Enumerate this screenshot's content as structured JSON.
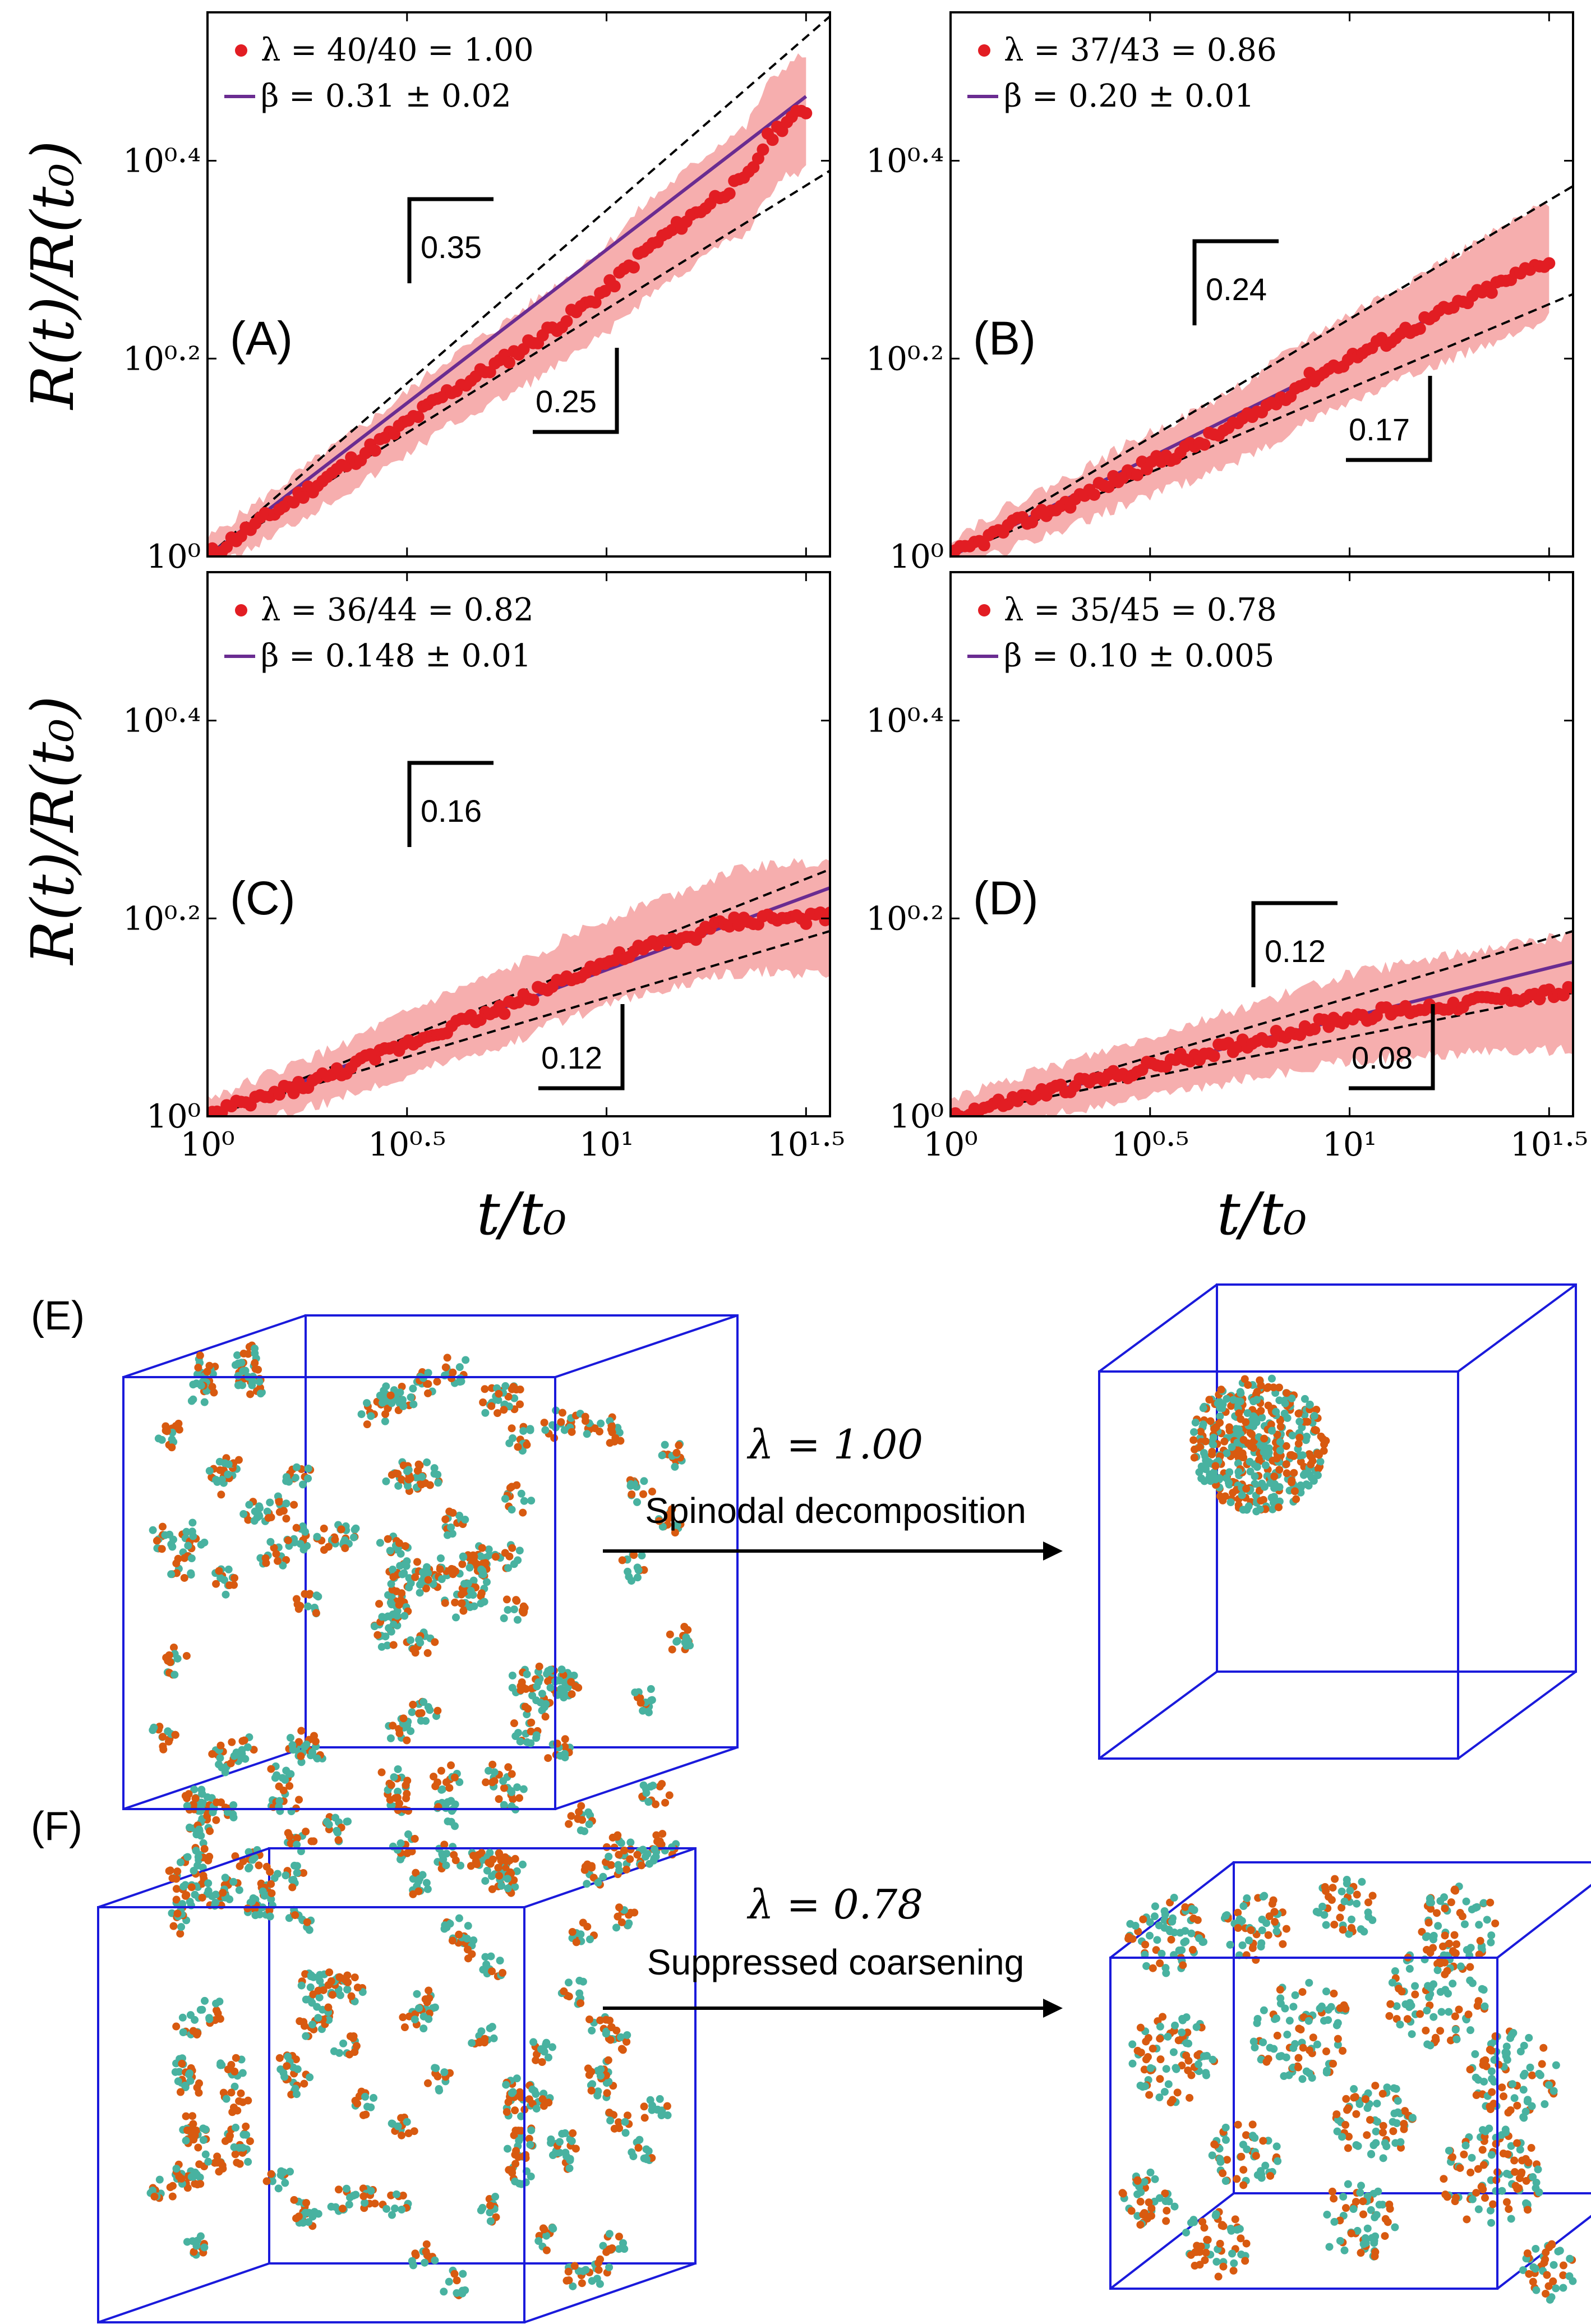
{
  "chart_data": [
    {
      "panel": "(A)",
      "type": "scatter",
      "legend": {
        "points": "λ = 40/40 = 1.00",
        "line": "β = 0.31 ± 0.02"
      },
      "ylabel": "R(t)/R(t₀)",
      "xlabel": "",
      "xlog_range": [
        0,
        1.56
      ],
      "ylog_range": [
        0,
        0.55
      ],
      "xticks": [],
      "yticks": [
        "10⁰",
        "10⁰·²",
        "10⁰·⁴"
      ],
      "fit_beta": 0.31,
      "upper_slope": 0.35,
      "lower_slope": 0.25,
      "x_end": 1.5,
      "slope_labels": {
        "upper": "0.35",
        "lower": "0.25"
      },
      "series": [
        {
          "name": "data",
          "x": [
            0,
            0.15,
            0.3,
            0.45,
            0.6,
            0.75,
            0.9,
            1.0,
            1.1,
            1.2,
            1.3,
            1.35,
            1.4,
            1.45,
            1.5
          ],
          "y": [
            0,
            0.04,
            0.08,
            0.12,
            0.165,
            0.2,
            0.24,
            0.27,
            0.31,
            0.34,
            0.37,
            0.38,
            0.42,
            0.44,
            0.45
          ]
        }
      ]
    },
    {
      "panel": "(B)",
      "type": "scatter",
      "legend": {
        "points": "λ = 37/43 = 0.86",
        "line": "β = 0.20 ± 0.01"
      },
      "ylabel": "",
      "xlabel": "",
      "xlog_range": [
        0,
        1.56
      ],
      "ylog_range": [
        0,
        0.55
      ],
      "xticks": [],
      "yticks": [
        "10⁰",
        "10⁰·²",
        "10⁰·⁴"
      ],
      "fit_beta": 0.2,
      "upper_slope": 0.24,
      "lower_slope": 0.17,
      "x_end": 1.5,
      "slope_labels": {
        "upper": "0.24",
        "lower": "0.17"
      },
      "series": [
        {
          "name": "data",
          "x": [
            0,
            0.15,
            0.3,
            0.45,
            0.6,
            0.75,
            0.9,
            1.0,
            1.1,
            1.2,
            1.3,
            1.4,
            1.5
          ],
          "y": [
            0,
            0.03,
            0.055,
            0.085,
            0.11,
            0.14,
            0.18,
            0.2,
            0.22,
            0.24,
            0.26,
            0.28,
            0.3
          ]
        }
      ]
    },
    {
      "panel": "(C)",
      "type": "scatter",
      "legend": {
        "points": "λ = 36/44 = 0.82",
        "line": "β = 0.148 ± 0.01"
      },
      "ylabel": "R(t)/R(t₀)",
      "xlabel": "t/t₀",
      "xlog_range": [
        0,
        1.56
      ],
      "ylog_range": [
        0,
        0.55
      ],
      "xticks": [
        "10⁰",
        "10⁰·⁵",
        "10¹",
        "10¹·⁵"
      ],
      "yticks": [
        "10⁰",
        "10⁰·²",
        "10⁰·⁴"
      ],
      "fit_beta": 0.148,
      "upper_slope": 0.16,
      "lower_slope": 0.12,
      "x_end": 1.56,
      "slope_labels": {
        "upper": "0.16",
        "lower": "0.12"
      },
      "series": [
        {
          "name": "data",
          "x": [
            0,
            0.15,
            0.3,
            0.45,
            0.6,
            0.75,
            0.9,
            1.0,
            1.1,
            1.2,
            1.3,
            1.4,
            1.56
          ],
          "y": [
            0,
            0.02,
            0.04,
            0.065,
            0.09,
            0.11,
            0.14,
            0.155,
            0.17,
            0.18,
            0.195,
            0.2,
            0.2
          ]
        }
      ]
    },
    {
      "panel": "(D)",
      "type": "scatter",
      "legend": {
        "points": "λ = 35/45 = 0.78",
        "line": "β = 0.10 ± 0.005"
      },
      "ylabel": "",
      "xlabel": "t/t₀",
      "xlog_range": [
        0,
        1.56
      ],
      "ylog_range": [
        0,
        0.55
      ],
      "xticks": [
        "10⁰",
        "10⁰·⁵",
        "10¹",
        "10¹·⁵"
      ],
      "yticks": [
        "10⁰",
        "10⁰·²",
        "10⁰·⁴"
      ],
      "fit_beta": 0.1,
      "upper_slope": 0.12,
      "lower_slope": 0.08,
      "x_end": 1.56,
      "slope_labels": {
        "upper": "0.12",
        "lower": "0.08"
      },
      "series": [
        {
          "name": "data",
          "x": [
            0,
            0.15,
            0.3,
            0.45,
            0.6,
            0.75,
            0.9,
            1.0,
            1.1,
            1.2,
            1.3,
            1.4,
            1.56
          ],
          "y": [
            0,
            0.015,
            0.03,
            0.045,
            0.06,
            0.075,
            0.09,
            0.1,
            0.105,
            0.11,
            0.115,
            0.12,
            0.125
          ]
        }
      ]
    }
  ],
  "panels": {
    "A": "(A)",
    "B": "(B)",
    "C": "(C)",
    "D": "(D)",
    "E": "(E)",
    "F": "(F)"
  },
  "labels": {
    "ylabel": "R(t)/R(t₀)",
    "xlabel": "t/t₀"
  },
  "simulations": {
    "E": {
      "lambda": "λ = 1.00",
      "process": "Spinodal decomposition"
    },
    "F": {
      "lambda": "λ = 0.78",
      "process": "Suppressed coarsening"
    }
  },
  "colors": {
    "points": "#e21d23",
    "band": "#f4a0a0",
    "fit": "#6a2c91",
    "box": "#1a1adb",
    "teal": "#48b2a0",
    "orange": "#d85a10"
  }
}
